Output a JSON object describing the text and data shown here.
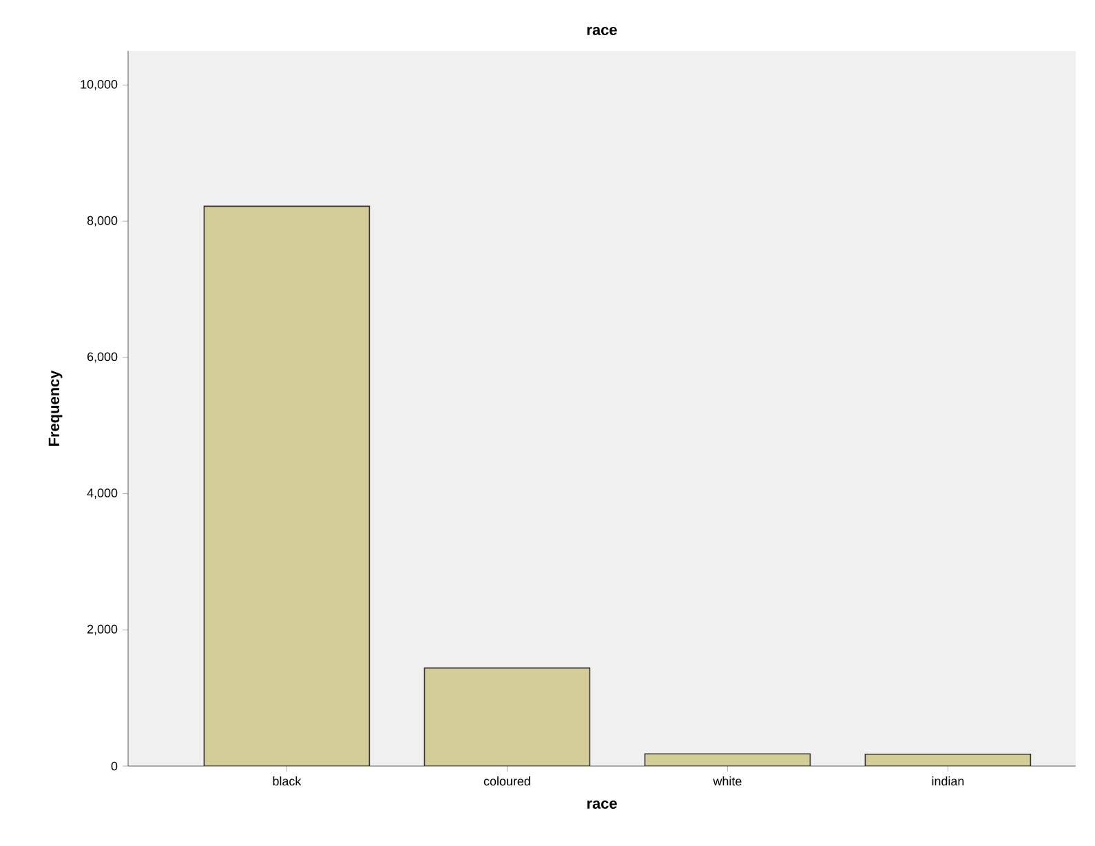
{
  "chart_data": {
    "type": "bar",
    "title": "race",
    "xlabel": "race",
    "ylabel": "Frequency",
    "categories": [
      "black",
      "coloured",
      "white",
      "indian"
    ],
    "values": [
      8220,
      1440,
      180,
      175
    ],
    "color": "#d3ce97",
    "ylim": [
      0,
      10500
    ],
    "yticks": [
      0,
      {
        "value": 2000,
        "label": "2,000"
      },
      {
        "value": 4000,
        "label": "4,000"
      },
      {
        "value": 6000,
        "label": "6,000"
      },
      {
        "value": 8000,
        "label": "8,000"
      },
      {
        "value": 10000,
        "label": "10,000"
      }
    ]
  }
}
